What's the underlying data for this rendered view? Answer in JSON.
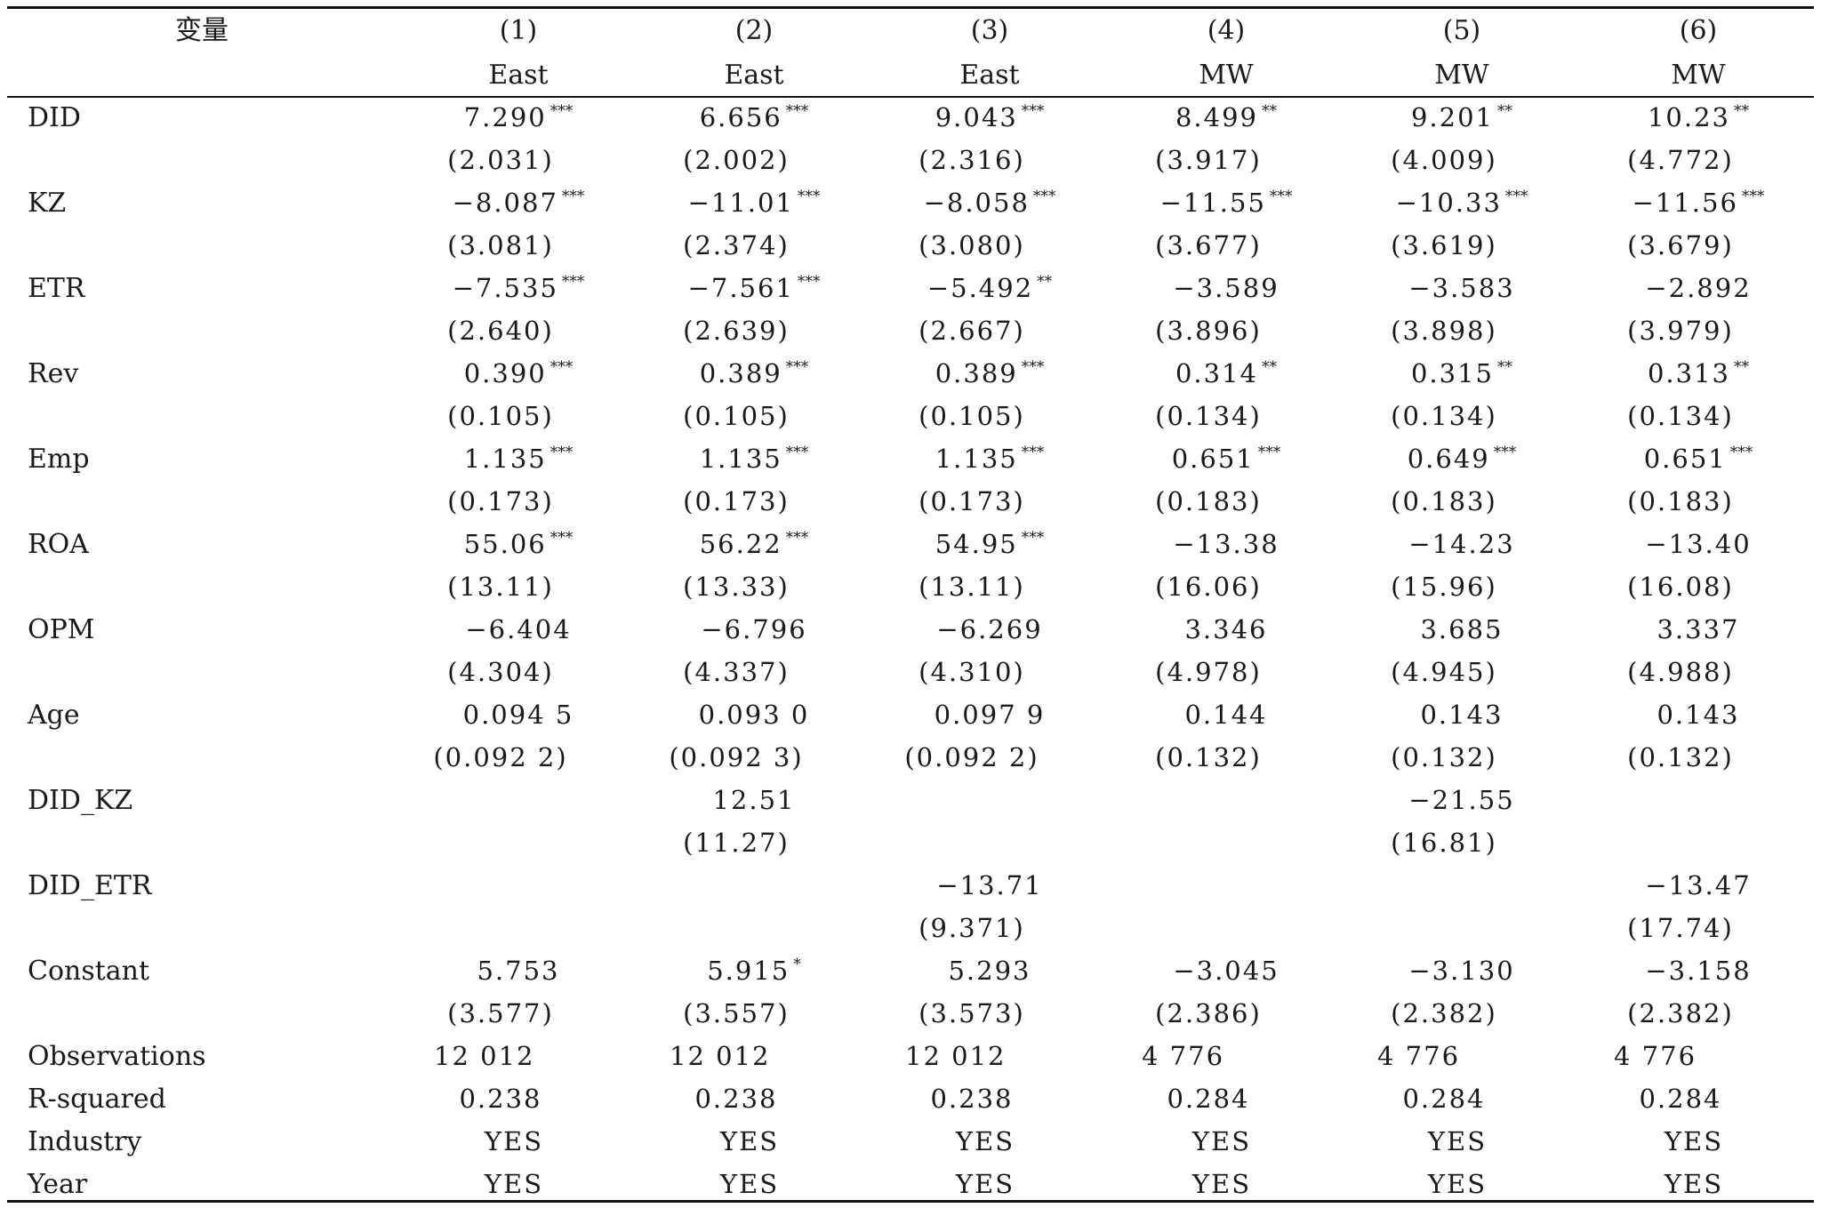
{
  "header": {
    "variable_label": "变量",
    "columns": [
      {
        "num": "(1)",
        "name": "East"
      },
      {
        "num": "(2)",
        "name": "East"
      },
      {
        "num": "(3)",
        "name": "East"
      },
      {
        "num": "(4)",
        "name": "MW"
      },
      {
        "num": "(5)",
        "name": "MW"
      },
      {
        "num": "(6)",
        "name": "MW"
      }
    ]
  },
  "rows": [
    {
      "label": "DID",
      "coef": [
        [
          "7.290",
          "***"
        ],
        [
          "6.656",
          "***"
        ],
        [
          "9.043",
          "***"
        ],
        [
          "8.499",
          "**"
        ],
        [
          "9.201",
          "**"
        ],
        [
          "10.23",
          "**"
        ]
      ],
      "se": [
        "(2.031)",
        "(2.002)",
        "(2.316)",
        "(3.917)",
        "(4.009)",
        "(4.772)"
      ]
    },
    {
      "label": "KZ",
      "coef": [
        [
          "−8.087",
          "***"
        ],
        [
          "−11.01",
          "***"
        ],
        [
          "−8.058",
          "***"
        ],
        [
          "−11.55",
          "***"
        ],
        [
          "−10.33",
          "***"
        ],
        [
          "−11.56",
          "***"
        ]
      ],
      "se": [
        "(3.081)",
        "(2.374)",
        "(3.080)",
        "(3.677)",
        "(3.619)",
        "(3.679)"
      ]
    },
    {
      "label": "ETR",
      "coef": [
        [
          "−7.535",
          "***"
        ],
        [
          "−7.561",
          "***"
        ],
        [
          "−5.492",
          "**"
        ],
        [
          "−3.589",
          ""
        ],
        [
          "−3.583",
          ""
        ],
        [
          "−2.892",
          ""
        ]
      ],
      "se": [
        "(2.640)",
        "(2.639)",
        "(2.667)",
        "(3.896)",
        "(3.898)",
        "(3.979)"
      ]
    },
    {
      "label": "Rev",
      "coef": [
        [
          "0.390",
          "***"
        ],
        [
          "0.389",
          "***"
        ],
        [
          "0.389",
          "***"
        ],
        [
          "0.314",
          "**"
        ],
        [
          "0.315",
          "**"
        ],
        [
          "0.313",
          "**"
        ]
      ],
      "se": [
        "(0.105)",
        "(0.105)",
        "(0.105)",
        "(0.134)",
        "(0.134)",
        "(0.134)"
      ]
    },
    {
      "label": "Emp",
      "coef": [
        [
          "1.135",
          "***"
        ],
        [
          "1.135",
          "***"
        ],
        [
          "1.135",
          "***"
        ],
        [
          "0.651",
          "***"
        ],
        [
          "0.649",
          "***"
        ],
        [
          "0.651",
          "***"
        ]
      ],
      "se": [
        "(0.173)",
        "(0.173)",
        "(0.173)",
        "(0.183)",
        "(0.183)",
        "(0.183)"
      ]
    },
    {
      "label": "ROA",
      "coef": [
        [
          "55.06",
          "***"
        ],
        [
          "56.22",
          "***"
        ],
        [
          "54.95",
          "***"
        ],
        [
          "−13.38",
          ""
        ],
        [
          "−14.23",
          ""
        ],
        [
          "−13.40",
          ""
        ]
      ],
      "se": [
        "(13.11)",
        "(13.33)",
        "(13.11)",
        "(16.06)",
        "(15.96)",
        "(16.08)"
      ]
    },
    {
      "label": "OPM",
      "coef": [
        [
          "−6.404",
          ""
        ],
        [
          "−6.796",
          ""
        ],
        [
          "−6.269",
          ""
        ],
        [
          "3.346",
          ""
        ],
        [
          "3.685",
          ""
        ],
        [
          "3.337",
          ""
        ]
      ],
      "se": [
        "(4.304)",
        "(4.337)",
        "(4.310)",
        "(4.978)",
        "(4.945)",
        "(4.988)"
      ]
    },
    {
      "label": "Age",
      "coef": [
        [
          "0.094 5",
          ""
        ],
        [
          "0.093 0",
          ""
        ],
        [
          "0.097 9",
          ""
        ],
        [
          "0.144",
          ""
        ],
        [
          "0.143",
          ""
        ],
        [
          "0.143",
          ""
        ]
      ],
      "se": [
        "(0.092 2)",
        "(0.092 3)",
        "(0.092 2)",
        "(0.132)",
        "(0.132)",
        "(0.132)"
      ]
    },
    {
      "label": "DID_KZ",
      "coef": [
        [
          "",
          ""
        ],
        [
          "12.51",
          ""
        ],
        [
          "",
          ""
        ],
        [
          "",
          ""
        ],
        [
          "−21.55",
          ""
        ],
        [
          "",
          ""
        ]
      ],
      "se": [
        "",
        "(11.27)",
        "",
        "",
        "(16.81)",
        ""
      ]
    },
    {
      "label": "DID_ETR",
      "coef": [
        [
          "",
          ""
        ],
        [
          "",
          ""
        ],
        [
          "−13.71",
          ""
        ],
        [
          "",
          ""
        ],
        [
          "",
          ""
        ],
        [
          "−13.47",
          ""
        ]
      ],
      "se": [
        "",
        "",
        "(9.371)",
        "",
        "",
        "(17.74)"
      ]
    },
    {
      "label": "Constant",
      "coef": [
        [
          "5.753",
          ""
        ],
        [
          "5.915",
          "*"
        ],
        [
          "5.293",
          ""
        ],
        [
          "−3.045",
          ""
        ],
        [
          "−3.130",
          ""
        ],
        [
          "−3.158",
          ""
        ]
      ],
      "se": [
        "(3.577)",
        "(3.557)",
        "(3.573)",
        "(2.386)",
        "(2.382)",
        "(2.382)"
      ]
    }
  ],
  "stats": [
    {
      "label": "Observations",
      "values": [
        "12 012",
        "12 012",
        "12 012",
        "4 776",
        "4 776",
        "4 776"
      ]
    },
    {
      "label": "R-squared",
      "values": [
        "0.238",
        "0.238",
        "0.238",
        "0.284",
        "0.284",
        "0.284"
      ]
    },
    {
      "label": "Industry",
      "values": [
        "YES",
        "YES",
        "YES",
        "YES",
        "YES",
        "YES"
      ]
    },
    {
      "label": "Year",
      "values": [
        "YES",
        "YES",
        "YES",
        "YES",
        "YES",
        "YES"
      ]
    }
  ]
}
